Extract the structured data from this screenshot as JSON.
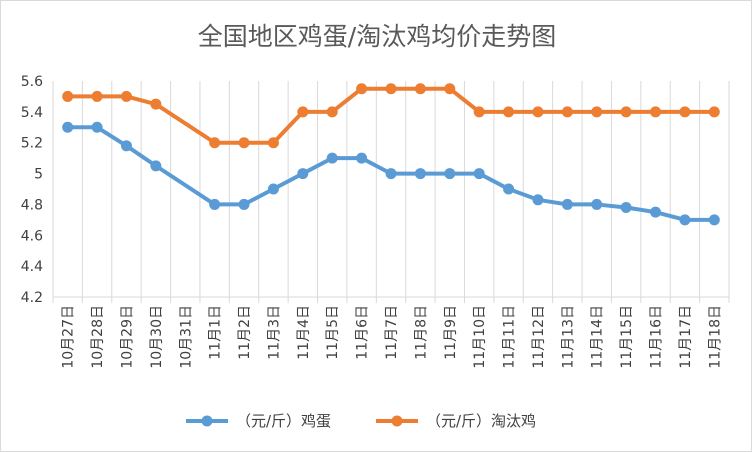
{
  "chart_data": {
    "type": "line",
    "title": "全国地区鸡蛋/淘汰鸡均价走势图",
    "categories": [
      "10月27日",
      "10月28日",
      "10月29日",
      "10月30日",
      "10月31日",
      "11月1日",
      "11月2日",
      "11月3日",
      "11月4日",
      "11月5日",
      "11月6日",
      "11月7日",
      "11月8日",
      "11月9日",
      "11月10日",
      "11月11日",
      "11月12日",
      "11月13日",
      "11月14日",
      "11月15日",
      "11月16日",
      "11月17日",
      "11月18日"
    ],
    "series": [
      {
        "name": "（元/斤）鸡蛋",
        "color": "#5b9bd5",
        "values": [
          5.3,
          5.3,
          5.18,
          5.05,
          null,
          4.8,
          4.8,
          4.9,
          5.0,
          5.1,
          5.1,
          5.0,
          5.0,
          5.0,
          5.0,
          4.9,
          4.83,
          4.8,
          4.8,
          4.78,
          4.75,
          4.7,
          4.7
        ]
      },
      {
        "name": "（元/斤）淘汰鸡",
        "color": "#ed7d31",
        "values": [
          5.5,
          5.5,
          5.5,
          5.45,
          null,
          5.2,
          5.2,
          5.2,
          5.4,
          5.4,
          5.55,
          5.55,
          5.55,
          5.55,
          5.4,
          5.4,
          5.4,
          5.4,
          5.4,
          5.4,
          5.4,
          5.4,
          5.4
        ]
      }
    ],
    "yticks": [
      "4.2",
      "4.4",
      "4.6",
      "4.8",
      "5",
      "5.2",
      "5.4",
      "5.6"
    ],
    "ylim": [
      4.2,
      5.6
    ],
    "xlabel": "",
    "ylabel": "",
    "grid": "vertical",
    "legend": "bottom",
    "axis_color": "#d9d9d9"
  }
}
